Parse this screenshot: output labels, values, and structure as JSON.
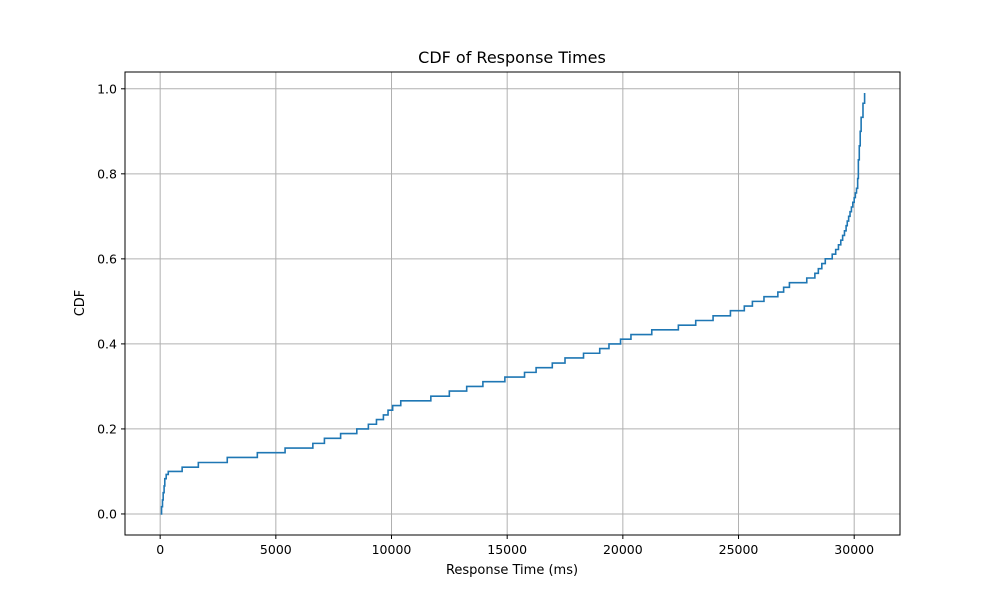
{
  "chart_data": {
    "type": "line",
    "step": true,
    "title": "CDF of Response Times",
    "xlabel": "Response Time (ms)",
    "ylabel": "CDF",
    "xlim": [
      -1520,
      31980
    ],
    "ylim": [
      -0.0495,
      1.0395
    ],
    "xticks": [
      0,
      5000,
      10000,
      15000,
      20000,
      25000,
      30000
    ],
    "xtick_labels": [
      "0",
      "5000",
      "10000",
      "15000",
      "20000",
      "25000",
      "30000"
    ],
    "yticks": [
      0.0,
      0.2,
      0.4,
      0.6,
      0.8,
      1.0
    ],
    "ytick_labels": [
      "0.0",
      "0.2",
      "0.4",
      "0.6",
      "0.8",
      "1.0"
    ],
    "grid": true,
    "line_color": "#1f77b4",
    "series": [
      {
        "x": [
          20,
          60,
          100,
          130,
          170,
          200,
          260,
          350,
          950,
          1650,
          2900,
          4200,
          5400,
          6600,
          7100,
          7800,
          8500,
          9000,
          9350,
          9650,
          9850,
          10050,
          10400,
          11700,
          12500,
          13250,
          13950,
          14900,
          15750,
          16250,
          16950,
          17500,
          18300,
          19000,
          19400,
          19900,
          20350,
          21250,
          22400,
          23150,
          23900,
          24650,
          25250,
          25600,
          26100,
          26700,
          26950,
          27200,
          27950,
          28300,
          28450,
          28600,
          28750,
          29050,
          29200,
          29320,
          29420,
          29500,
          29580,
          29650,
          29700,
          29760,
          29820,
          29880,
          29940,
          30000,
          30050,
          30100,
          30150,
          30180,
          30220,
          30260,
          30300,
          30380,
          30450
        ],
        "y": [
          0.0,
          0.017,
          0.033,
          0.05,
          0.066,
          0.083,
          0.093,
          0.1,
          0.11,
          0.121,
          0.133,
          0.144,
          0.155,
          0.166,
          0.178,
          0.189,
          0.2,
          0.211,
          0.222,
          0.233,
          0.244,
          0.255,
          0.266,
          0.277,
          0.289,
          0.3,
          0.311,
          0.322,
          0.333,
          0.344,
          0.355,
          0.367,
          0.378,
          0.389,
          0.4,
          0.411,
          0.422,
          0.433,
          0.444,
          0.455,
          0.466,
          0.478,
          0.489,
          0.5,
          0.511,
          0.522,
          0.533,
          0.544,
          0.555,
          0.566,
          0.577,
          0.589,
          0.6,
          0.611,
          0.622,
          0.633,
          0.644,
          0.655,
          0.666,
          0.678,
          0.689,
          0.7,
          0.711,
          0.722,
          0.733,
          0.744,
          0.755,
          0.766,
          0.789,
          0.833,
          0.866,
          0.9,
          0.933,
          0.966,
          0.99
        ]
      }
    ]
  }
}
